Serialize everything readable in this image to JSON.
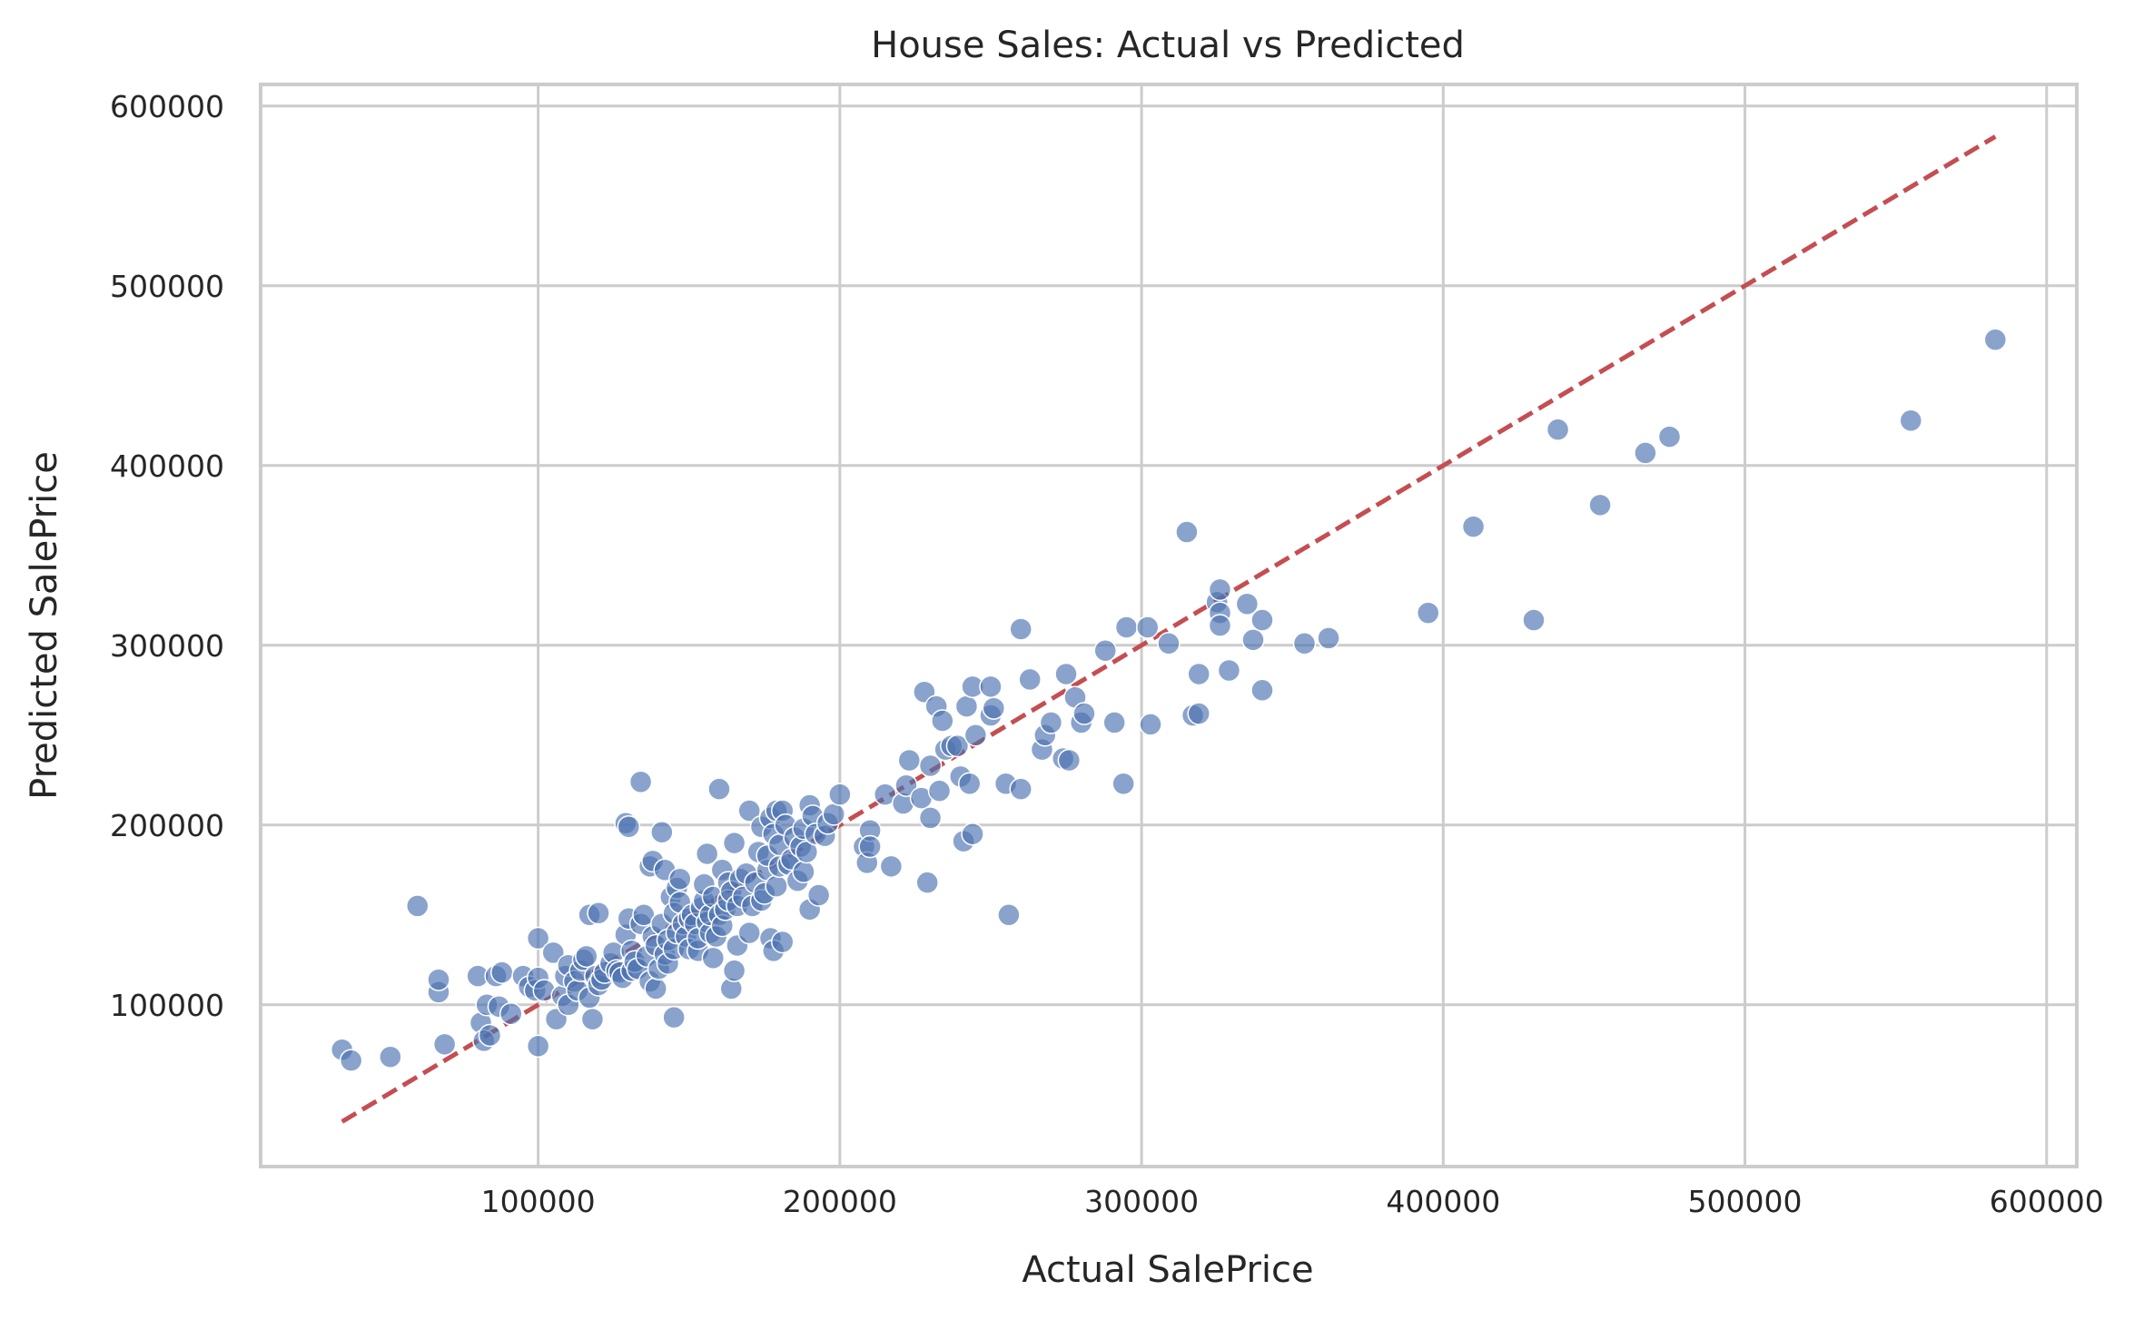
{
  "chart_data": {
    "type": "scatter",
    "title": "House Sales: Actual vs Predicted",
    "xlabel": "Actual SalePrice",
    "ylabel": "Predicted SalePrice",
    "xlim": [
      8000,
      610000
    ],
    "ylim": [
      10000,
      612000
    ],
    "xticks": [
      100000,
      200000,
      300000,
      400000,
      500000,
      600000
    ],
    "yticks": [
      100000,
      200000,
      300000,
      400000,
      500000,
      600000
    ],
    "grid": true,
    "colors": {
      "points": "#4c72b0",
      "reference_line": "#c44e52",
      "grid": "#cccccc"
    },
    "reference_line": {
      "x": [
        35000,
        583000
      ],
      "y": [
        35000,
        583000
      ],
      "style": "dashed"
    },
    "points": [
      [
        35000,
        75000
      ],
      [
        38000,
        69000
      ],
      [
        51000,
        71000
      ],
      [
        60000,
        155000
      ],
      [
        67000,
        107000
      ],
      [
        67000,
        114000
      ],
      [
        69000,
        78000
      ],
      [
        80000,
        116000
      ],
      [
        81000,
        90000
      ],
      [
        82000,
        80000
      ],
      [
        83000,
        100000
      ],
      [
        84000,
        83000
      ],
      [
        86000,
        116000
      ],
      [
        87000,
        99000
      ],
      [
        88000,
        118000
      ],
      [
        91000,
        95000
      ],
      [
        95000,
        116000
      ],
      [
        97000,
        110000
      ],
      [
        99000,
        108000
      ],
      [
        100000,
        77000
      ],
      [
        100000,
        115000
      ],
      [
        100000,
        137000
      ],
      [
        102000,
        108000
      ],
      [
        105000,
        129000
      ],
      [
        106000,
        92000
      ],
      [
        108000,
        105000
      ],
      [
        109000,
        116000
      ],
      [
        110000,
        100000
      ],
      [
        110000,
        122000
      ],
      [
        112000,
        113000
      ],
      [
        113000,
        108000
      ],
      [
        114000,
        119000
      ],
      [
        115000,
        125000
      ],
      [
        116000,
        127000
      ],
      [
        117000,
        104000
      ],
      [
        117000,
        150000
      ],
      [
        118000,
        92000
      ],
      [
        119000,
        116000
      ],
      [
        120000,
        111000
      ],
      [
        120000,
        151000
      ],
      [
        121000,
        114000
      ],
      [
        122000,
        118000
      ],
      [
        124000,
        123000
      ],
      [
        125000,
        129000
      ],
      [
        126000,
        119000
      ],
      [
        127000,
        118000
      ],
      [
        128000,
        115000
      ],
      [
        129000,
        139000
      ],
      [
        129000,
        201000
      ],
      [
        130000,
        148000
      ],
      [
        130000,
        199000
      ],
      [
        131000,
        130000
      ],
      [
        131000,
        119000
      ],
      [
        132000,
        124000
      ],
      [
        133000,
        120000
      ],
      [
        134000,
        145000
      ],
      [
        134000,
        224000
      ],
      [
        135000,
        150000
      ],
      [
        136000,
        127000
      ],
      [
        137000,
        113000
      ],
      [
        137000,
        177000
      ],
      [
        138000,
        138000
      ],
      [
        138000,
        180000
      ],
      [
        139000,
        133000
      ],
      [
        139000,
        109000
      ],
      [
        140000,
        120000
      ],
      [
        141000,
        145000
      ],
      [
        141000,
        196000
      ],
      [
        142000,
        128000
      ],
      [
        142000,
        175000
      ],
      [
        143000,
        123000
      ],
      [
        143000,
        136000
      ],
      [
        144000,
        160000
      ],
      [
        145000,
        151000
      ],
      [
        145000,
        131000
      ],
      [
        145000,
        93000
      ],
      [
        146000,
        165000
      ],
      [
        146000,
        140000
      ],
      [
        147000,
        157000
      ],
      [
        147000,
        170000
      ],
      [
        148000,
        145000
      ],
      [
        149000,
        138000
      ],
      [
        150000,
        131000
      ],
      [
        150000,
        148000
      ],
      [
        151000,
        150000
      ],
      [
        152000,
        145000
      ],
      [
        153000,
        130000
      ],
      [
        153000,
        137000
      ],
      [
        154000,
        154000
      ],
      [
        155000,
        158000
      ],
      [
        155000,
        167000
      ],
      [
        156000,
        184000
      ],
      [
        156000,
        146000
      ],
      [
        157000,
        140000
      ],
      [
        157000,
        150000
      ],
      [
        158000,
        126000
      ],
      [
        158000,
        160000
      ],
      [
        159000,
        138000
      ],
      [
        160000,
        150000
      ],
      [
        160000,
        220000
      ],
      [
        161000,
        144000
      ],
      [
        161000,
        175000
      ],
      [
        162000,
        153000
      ],
      [
        163000,
        168000
      ],
      [
        163000,
        158000
      ],
      [
        164000,
        109000
      ],
      [
        164000,
        163000
      ],
      [
        165000,
        119000
      ],
      [
        165000,
        190000
      ],
      [
        166000,
        133000
      ],
      [
        166000,
        155000
      ],
      [
        167000,
        170000
      ],
      [
        168000,
        160000
      ],
      [
        169000,
        173000
      ],
      [
        170000,
        140000
      ],
      [
        170000,
        208000
      ],
      [
        171000,
        155000
      ],
      [
        172000,
        168000
      ],
      [
        173000,
        185000
      ],
      [
        174000,
        158000
      ],
      [
        174000,
        199000
      ],
      [
        175000,
        162000
      ],
      [
        176000,
        175000
      ],
      [
        176000,
        183000
      ],
      [
        177000,
        204000
      ],
      [
        177000,
        137000
      ],
      [
        178000,
        130000
      ],
      [
        178000,
        195000
      ],
      [
        179000,
        208000
      ],
      [
        179000,
        166000
      ],
      [
        180000,
        177000
      ],
      [
        180000,
        189000
      ],
      [
        181000,
        135000
      ],
      [
        181000,
        208000
      ],
      [
        182000,
        200000
      ],
      [
        183000,
        178000
      ],
      [
        184000,
        181000
      ],
      [
        185000,
        193000
      ],
      [
        186000,
        169000
      ],
      [
        187000,
        188000
      ],
      [
        188000,
        174000
      ],
      [
        188000,
        198000
      ],
      [
        189000,
        185000
      ],
      [
        190000,
        153000
      ],
      [
        190000,
        211000
      ],
      [
        191000,
        205000
      ],
      [
        192000,
        195000
      ],
      [
        193000,
        161000
      ],
      [
        195000,
        194000
      ],
      [
        196000,
        201000
      ],
      [
        198000,
        206000
      ],
      [
        200000,
        217000
      ],
      [
        208000,
        188000
      ],
      [
        209000,
        179000
      ],
      [
        210000,
        197000
      ],
      [
        210000,
        188000
      ],
      [
        215000,
        217000
      ],
      [
        217000,
        177000
      ],
      [
        221000,
        212000
      ],
      [
        222000,
        222000
      ],
      [
        223000,
        236000
      ],
      [
        227000,
        215000
      ],
      [
        228000,
        274000
      ],
      [
        229000,
        168000
      ],
      [
        230000,
        204000
      ],
      [
        230000,
        233000
      ],
      [
        232000,
        266000
      ],
      [
        233000,
        219000
      ],
      [
        234000,
        258000
      ],
      [
        235000,
        242000
      ],
      [
        237000,
        244000
      ],
      [
        239000,
        244000
      ],
      [
        240000,
        227000
      ],
      [
        241000,
        191000
      ],
      [
        242000,
        266000
      ],
      [
        243000,
        223000
      ],
      [
        244000,
        277000
      ],
      [
        244000,
        195000
      ],
      [
        245000,
        250000
      ],
      [
        250000,
        261000
      ],
      [
        251000,
        265000
      ],
      [
        250000,
        277000
      ],
      [
        255000,
        223000
      ],
      [
        256000,
        150000
      ],
      [
        260000,
        220000
      ],
      [
        260000,
        309000
      ],
      [
        263000,
        281000
      ],
      [
        267000,
        242000
      ],
      [
        268000,
        250000
      ],
      [
        270000,
        257000
      ],
      [
        274000,
        237000
      ],
      [
        275000,
        284000
      ],
      [
        276000,
        236000
      ],
      [
        278000,
        271000
      ],
      [
        280000,
        257000
      ],
      [
        281000,
        262000
      ],
      [
        288000,
        297000
      ],
      [
        291000,
        257000
      ],
      [
        294000,
        223000
      ],
      [
        295000,
        310000
      ],
      [
        302000,
        310000
      ],
      [
        303000,
        256000
      ],
      [
        309000,
        301000
      ],
      [
        315000,
        363000
      ],
      [
        317000,
        261000
      ],
      [
        319000,
        284000
      ],
      [
        319000,
        262000
      ],
      [
        325000,
        324000
      ],
      [
        326000,
        318000
      ],
      [
        326000,
        311000
      ],
      [
        326000,
        331000
      ],
      [
        329000,
        286000
      ],
      [
        335000,
        323000
      ],
      [
        337000,
        303000
      ],
      [
        340000,
        314000
      ],
      [
        340000,
        275000
      ],
      [
        354000,
        301000
      ],
      [
        362000,
        304000
      ],
      [
        395000,
        318000
      ],
      [
        410000,
        366000
      ],
      [
        430000,
        314000
      ],
      [
        438000,
        420000
      ],
      [
        452000,
        378000
      ],
      [
        467000,
        407000
      ],
      [
        475000,
        416000
      ],
      [
        555000,
        425000
      ],
      [
        583000,
        470000
      ]
    ]
  }
}
